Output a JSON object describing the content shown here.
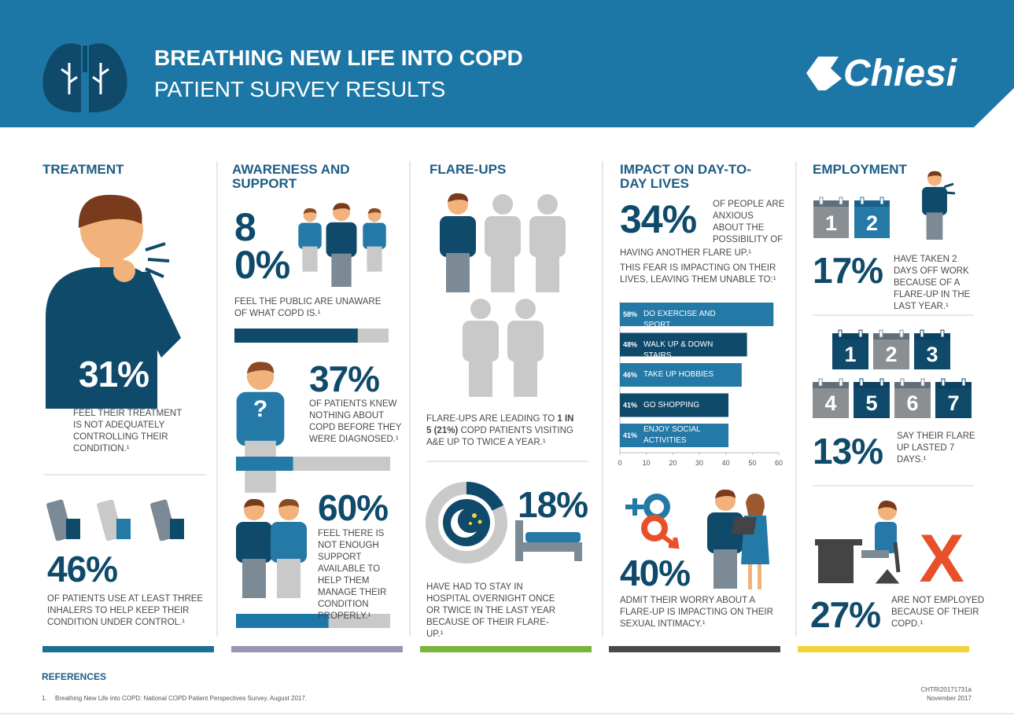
{
  "header": {
    "title": "BREATHING NEW LIFE INTO COPD",
    "subtitle": "PATIENT SURVEY RESULTS",
    "logo": "Chiesi"
  },
  "treatment": {
    "heading": "TREATMENT",
    "stat1": {
      "figure": "31%",
      "text": "FEEL THEIR TREATMENT IS NOT ADEQUATELY CONTROLLING THEIR CONDITION.¹"
    },
    "stat2": {
      "figure": "46%",
      "text": "OF PATIENTS USE AT LEAST THREE INHALERS TO HELP KEEP THEIR CONDITION UNDER CONTROL.¹"
    }
  },
  "awareness": {
    "heading": "AWARENESS AND SUPPORT",
    "stat1": {
      "value": 80,
      "label": "80%",
      "text": "FEEL THE PUBLIC ARE UNAWARE OF WHAT COPD IS.¹"
    },
    "stat2": {
      "value": 37,
      "label": "37%",
      "text": "OF PATIENTS KNEW NOTHING ABOUT COPD BEFORE THEY WERE DIAGNOSED.¹"
    },
    "stat3": {
      "value": 60,
      "label": "60%",
      "text": "FEEL THERE IS NOT ENOUGH SUPPORT AVAILABLE TO HELP THEM MANAGE THEIR CONDITION PROPERLY.¹"
    }
  },
  "flareups": {
    "heading": "FLARE-UPS",
    "text": [
      "FLARE-UPS ARE LEADING TO ",
      "1 IN 5 (21%)",
      " COPD PATIENTS VISITING A&E UP TO TWICE A YEAR.¹"
    ],
    "stat": {
      "value": 18,
      "label": "18%",
      "text": "HAVE HAD TO STAY IN HOSPITAL OVERNIGHT ONCE OR TWICE IN THE LAST YEAR BECAUSE OF THEIR FLARE-UP.¹"
    }
  },
  "impact": {
    "heading": "IMPACT ON DAY-TO-DAY LIVES",
    "stat1": {
      "figure": "34%",
      "text": [
        "OF PEOPLE ARE ANXIOUS ABOUT THE POSSIBILITY OF",
        "HAVING ANOTHER FLARE UP.¹"
      ]
    },
    "lead": "THIS FEAR IS IMPACTING ON THEIR LIVES, LEAVING THEM UNABLE TO:¹",
    "chart": {
      "type": "bar",
      "orientation": "horizontal",
      "categories": [
        "DO EXERCISE AND SPORT",
        "WALK UP & DOWN STAIRS",
        "TAKE UP HOBBIES",
        "GO SHOPPING",
        "ENJOY SOCIAL ACTIVITIES"
      ],
      "values": [
        58,
        48,
        46,
        41,
        41
      ],
      "value_labels": [
        "58%",
        "48%",
        "46%",
        "41%",
        "41%"
      ],
      "colors": [
        "#2479a7",
        "#0f4a6b",
        "#2479a7",
        "#0f4a6b",
        "#2479a7"
      ],
      "xlim": [
        0,
        60
      ],
      "xticks": [
        0,
        10,
        20,
        30,
        40,
        50,
        60
      ]
    },
    "stat2": {
      "figure": "40%",
      "text": "ADMIT THEIR WORRY ABOUT A FLARE-UP IS IMPACTING ON THEIR SEXUAL INTIMACY.¹"
    }
  },
  "employment": {
    "heading": "EMPLOYMENT",
    "calendar1": [
      "1",
      "2"
    ],
    "stat1": {
      "figure": "17%",
      "text": "HAVE TAKEN 2 DAYS OFF WORK BECAUSE OF A FLARE-UP IN THE LAST YEAR.¹"
    },
    "calendar2": [
      "1",
      "2",
      "3",
      "4",
      "5",
      "6",
      "7"
    ],
    "stat2": {
      "figure": "13%",
      "text": "SAY THEIR FLARE UP LASTED 7 DAYS.¹"
    },
    "mark": "X",
    "stat3": {
      "figure": "27%",
      "text": "ARE NOT EMPLOYED BECAUSE OF THEIR COPD.¹"
    }
  },
  "references": {
    "heading": "REFERENCES",
    "items": [
      {
        "number": "1.",
        "text": "Breathing New Life into COPD: National COPD Patient Perspectives Survey. August 2017."
      }
    ]
  },
  "footer": {
    "code": "CHTRI20171731a",
    "date": "November 2017"
  }
}
